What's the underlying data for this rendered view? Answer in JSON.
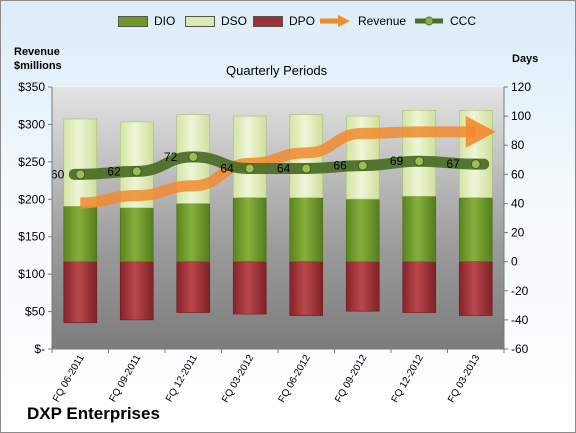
{
  "legend": [
    {
      "label": "DIO",
      "kind": "bar",
      "color": "#6f9a2a"
    },
    {
      "label": "DSO",
      "kind": "bar",
      "color": "#dbe9b4"
    },
    {
      "label": "DPO",
      "kind": "bar",
      "color": "#9e2f34"
    },
    {
      "label": "Revenue",
      "kind": "arrow",
      "color": "#f28a2e"
    },
    {
      "label": "CCC",
      "kind": "line",
      "color": "#4d6f2a"
    }
  ],
  "company": "DXP Enterprises",
  "chart_data": {
    "type": "bar",
    "title": "Quarterly Periods",
    "left_axis_title": [
      "Revenue",
      "$millions"
    ],
    "right_axis_title": "Days",
    "categories": [
      "FQ 06-2011",
      "FQ 09-2011",
      "FQ 12-2011",
      "FQ 03-2012",
      "FQ 06-2012",
      "FQ 09-2012",
      "FQ 12-2012",
      "FQ 03-2013"
    ],
    "left_axis": {
      "min": 0,
      "max": 350,
      "step": 50,
      "ticks": [
        "$-",
        "$50",
        "$100",
        "$150",
        "$200",
        "$250",
        "$300",
        "$350"
      ]
    },
    "right_axis": {
      "min": -60,
      "max": 120,
      "step": 20
    },
    "series": [
      {
        "name": "DIO",
        "axis": "days",
        "color": "#6f9a2a",
        "values": [
          38,
          37,
          40,
          44,
          44,
          43,
          45,
          44
        ]
      },
      {
        "name": "DSO",
        "axis": "days",
        "color": "#dbe9b4",
        "values": [
          60,
          59,
          61,
          56,
          57,
          57,
          59,
          60
        ]
      },
      {
        "name": "DPO",
        "axis": "days",
        "color": "#9e2f34",
        "values": [
          -42,
          -40,
          -35,
          -36,
          -37,
          -34,
          -35,
          -37
        ]
      },
      {
        "name": "Revenue",
        "axis": "$millions",
        "color": "#f28a2e",
        "values": [
          195,
          205,
          218,
          248,
          262,
          288,
          290,
          290
        ]
      },
      {
        "name": "CCC",
        "axis": "days",
        "color": "#4d6f2a",
        "values": [
          60,
          62,
          72,
          64,
          64,
          66,
          69,
          67
        ]
      }
    ],
    "data_labels": [
      "60",
      "62",
      "72",
      "64",
      "64",
      "66",
      "69",
      "67"
    ],
    "grid": false,
    "legend_position": "top"
  }
}
